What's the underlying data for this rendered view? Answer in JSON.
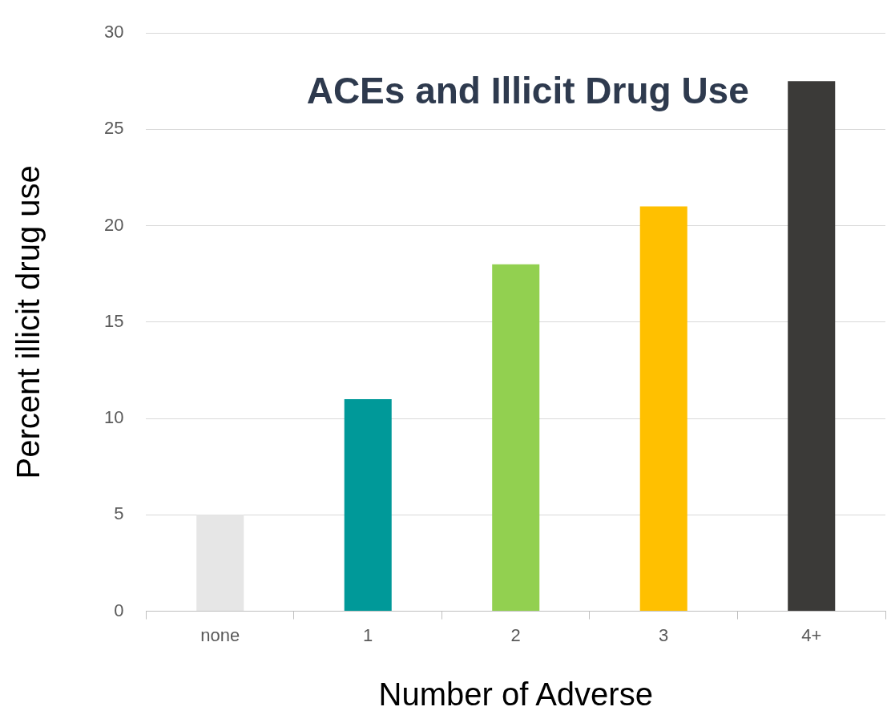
{
  "chart_data": {
    "type": "bar",
    "title": "ACEs and Illicit Drug Use",
    "xlabel": "Number of Adverse",
    "ylabel": "Percent illicit drug use",
    "categories": [
      "none",
      "1",
      "2",
      "3",
      "4+"
    ],
    "values": [
      5,
      11,
      18,
      21,
      27.5
    ],
    "colors": [
      "#e6e6e6",
      "#009999",
      "#92d050",
      "#ffc000",
      "#3b3a38"
    ],
    "ylim": [
      0,
      30
    ],
    "yticks": [
      0,
      5,
      10,
      15,
      20,
      25,
      30
    ],
    "grid": "y",
    "legend": false
  }
}
